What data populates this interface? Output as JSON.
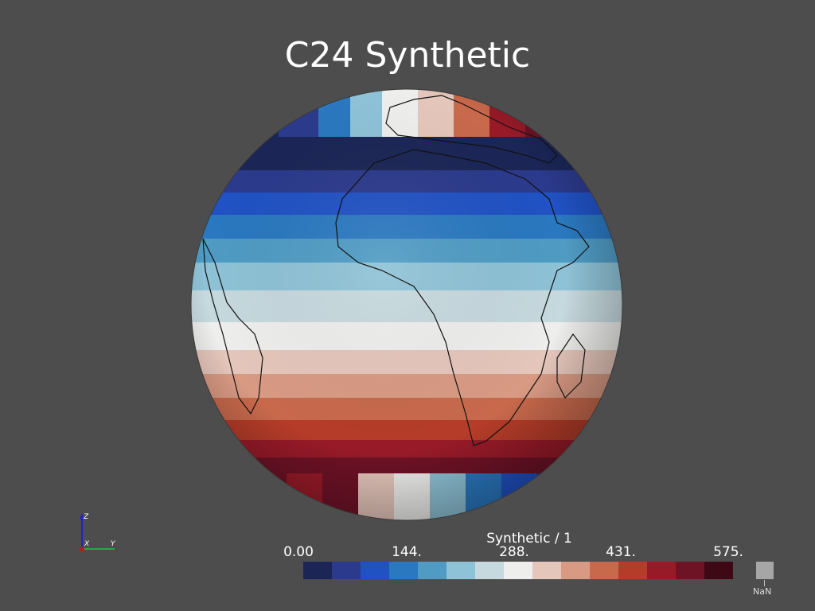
{
  "title": "C24 Synthetic",
  "colorbar": {
    "title": "Synthetic / 1",
    "ticks": [
      "0.00",
      "144.",
      "288.",
      "431.",
      "575."
    ],
    "nan_label": "NaN",
    "nan_color": "#a6a6a6",
    "colors": [
      "#1b2657",
      "#2b3a8c",
      "#2052c4",
      "#2a78c0",
      "#4f9bc4",
      "#8ec2d6",
      "#c6d9de",
      "#eeeeec",
      "#e5c6bb",
      "#d99a84",
      "#c8694c",
      "#b53c29",
      "#981a28",
      "#6e1226",
      "#3f0815"
    ]
  },
  "axes_indicator": {
    "z": "Z",
    "x": "X",
    "y": "Y"
  },
  "background": "#4d4d4d"
}
